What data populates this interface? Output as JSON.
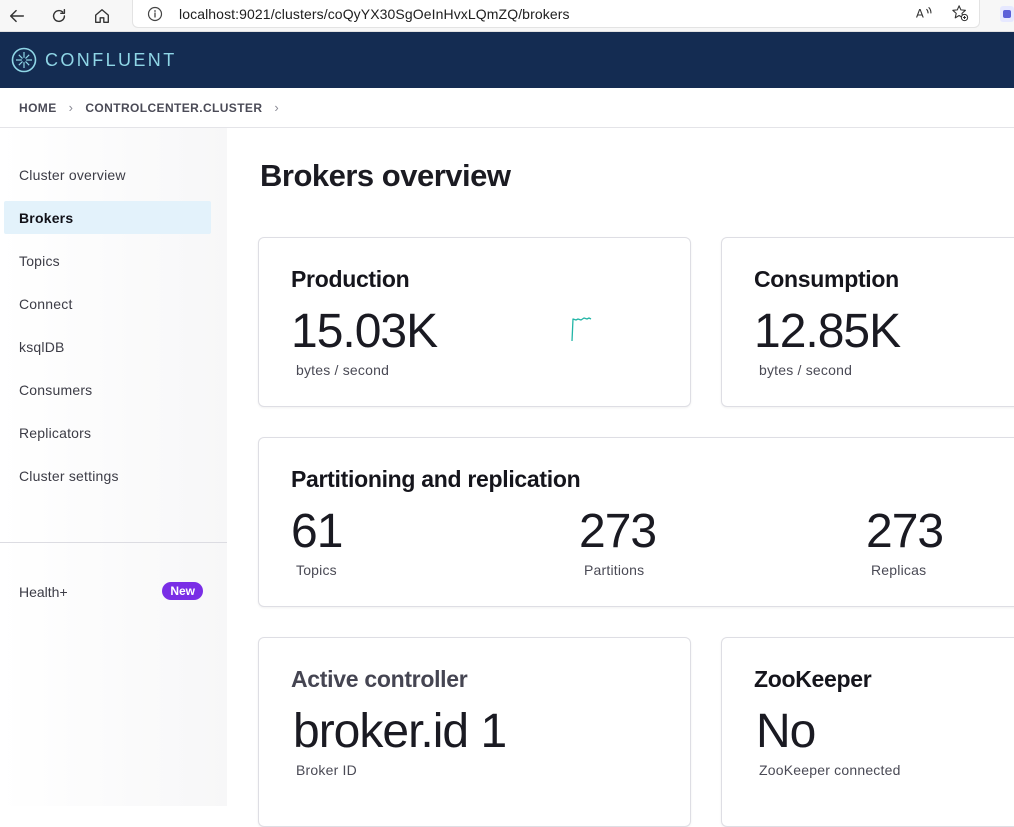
{
  "browser": {
    "url": "localhost:9021/clusters/coQyYX30SgOeInHvxLQmZQ/brokers"
  },
  "header": {
    "brand": "CONFLUENT",
    "colors": {
      "background": "#142c52",
      "brand_text": "#8fd6e6"
    }
  },
  "breadcrumb": {
    "items": [
      "HOME",
      "CONTROLCENTER.CLUSTER"
    ]
  },
  "sidebar": {
    "items": [
      {
        "label": "Cluster overview",
        "active": false
      },
      {
        "label": "Brokers",
        "active": true
      },
      {
        "label": "Topics",
        "active": false
      },
      {
        "label": "Connect",
        "active": false
      },
      {
        "label": "ksqlDB",
        "active": false
      },
      {
        "label": "Consumers",
        "active": false
      },
      {
        "label": "Replicators",
        "active": false
      },
      {
        "label": "Cluster settings",
        "active": false
      }
    ],
    "health": {
      "label": "Health+",
      "badge": "New",
      "badge_color": "#7a2ee6"
    },
    "active_color": "#e3f2fb"
  },
  "main": {
    "title": "Brokers overview",
    "production": {
      "title": "Production",
      "value": "15.03K",
      "unit": "bytes / second"
    },
    "consumption": {
      "title": "Consumption",
      "value": "12.85K",
      "unit": "bytes / second"
    },
    "partitioning": {
      "title": "Partitioning and replication",
      "stats": [
        {
          "value": "61",
          "label": "Topics"
        },
        {
          "value": "273",
          "label": "Partitions"
        },
        {
          "value": "273",
          "label": "Replicas"
        }
      ]
    },
    "active_controller": {
      "title": "Active controller",
      "value": "broker.id 1",
      "label": "Broker ID"
    },
    "zookeeper": {
      "title": "ZooKeeper",
      "value": "No",
      "label": "ZooKeeper connected"
    }
  }
}
